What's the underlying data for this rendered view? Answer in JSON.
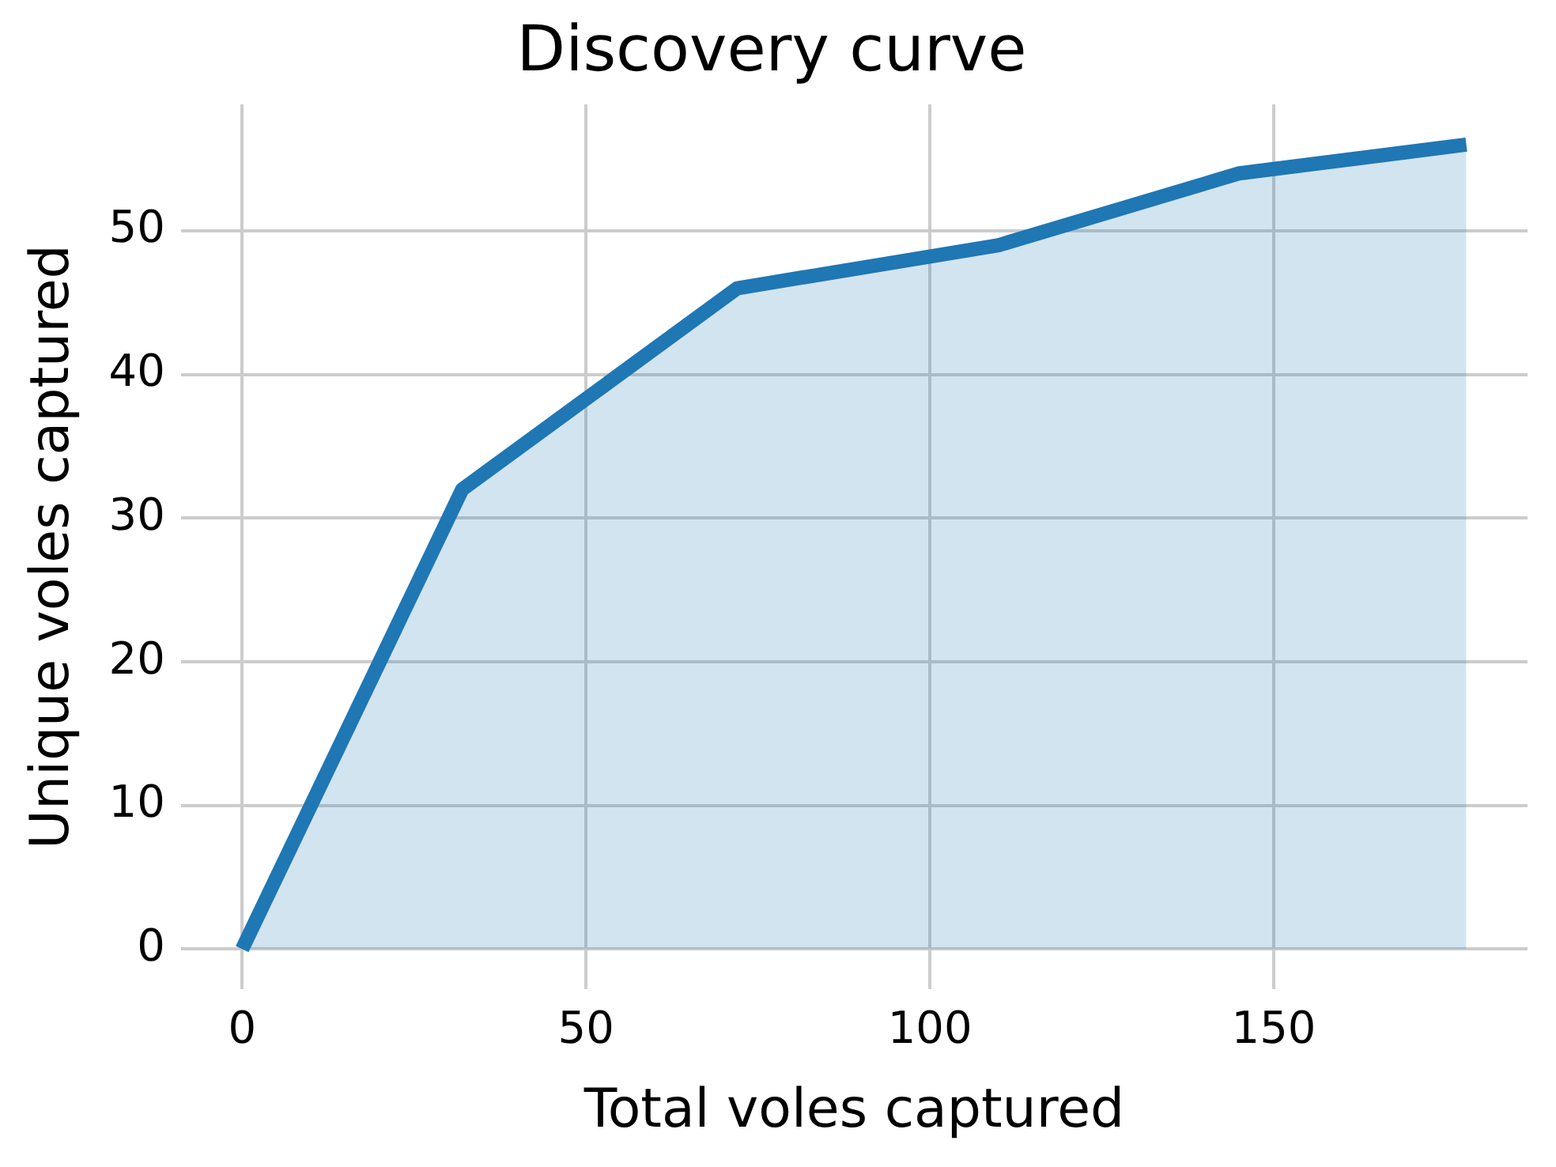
{
  "chart_data": {
    "type": "area",
    "title": "Discovery curve",
    "xlabel": "Total voles captured",
    "ylabel": "Unique voles captured",
    "x": [
      0,
      32,
      72,
      110,
      145,
      178
    ],
    "series": [
      {
        "color": "#1f77b4",
        "values": [
          0,
          32,
          46,
          49,
          54,
          56
        ]
      }
    ],
    "xlim": [
      -8.9,
      186.9
    ],
    "ylim": [
      -2.8,
      58.8
    ],
    "xticks": [
      0,
      50,
      100,
      150
    ],
    "yticks": [
      0,
      10,
      20,
      30,
      40,
      50
    ],
    "grid": true,
    "legend": false
  }
}
